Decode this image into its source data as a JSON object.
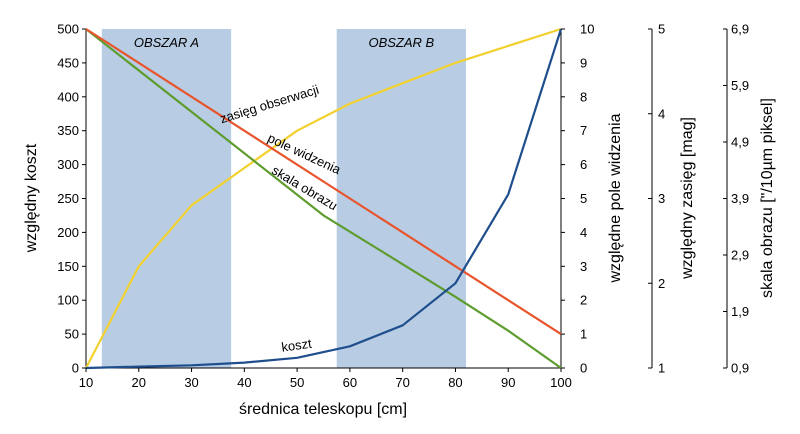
{
  "chart_data": {
    "type": "line",
    "xlabel": "średnica teleskopu [cm]",
    "xlim": [
      10,
      100
    ],
    "x_ticks": [
      "10",
      "20",
      "30",
      "40",
      "50",
      "60",
      "70",
      "80",
      "90",
      "100"
    ],
    "axes": {
      "left": {
        "label": "względny koszt",
        "lim": [
          0,
          500
        ],
        "ticks": [
          "0",
          "50",
          "100",
          "150",
          "200",
          "250",
          "300",
          "350",
          "400",
          "450",
          "500"
        ]
      },
      "right1": {
        "label": "względne pole widzenia",
        "lim": [
          0,
          10
        ],
        "ticks": [
          "0",
          "1",
          "2",
          "3",
          "4",
          "5",
          "6",
          "7",
          "8",
          "9",
          "10"
        ]
      },
      "right2": {
        "label": "względny zasięg [mag]",
        "lim": [
          1,
          5
        ],
        "ticks": [
          "1",
          "2",
          "3",
          "4",
          "5"
        ]
      },
      "right3": {
        "label": "skala obrazu [\"/10µm piksel]",
        "ticks": [
          "0,9",
          "1,9",
          "2,9",
          "3,9",
          "4,9",
          "5,9",
          "6,9"
        ]
      }
    },
    "zones": [
      {
        "label": "OBSZAR A",
        "x_start": 13,
        "x_end": 37.5,
        "color": "#b8cce4"
      },
      {
        "label": "OBSZAR B",
        "x_start": 57.5,
        "x_end": 82,
        "color": "#b8cce4"
      }
    ],
    "series": [
      {
        "name": "koszt",
        "axis": "left",
        "color": "#1f4e8c",
        "x": [
          10,
          20,
          30,
          40,
          50,
          60,
          70,
          80,
          90,
          100
        ],
        "y": [
          0,
          2,
          4,
          8,
          15,
          32,
          63,
          125,
          256,
          500
        ]
      },
      {
        "name": "zasięg obserwacji",
        "axis": "left",
        "color": "#f2d12e",
        "x": [
          10,
          20,
          30,
          40,
          50,
          60,
          70,
          80,
          90,
          100
        ],
        "y": [
          0,
          150,
          240,
          295,
          350,
          390,
          420,
          450,
          475,
          500
        ]
      },
      {
        "name": "pole widzenia",
        "axis": "left",
        "color": "#e8542c",
        "x": [
          10,
          100
        ],
        "y": [
          500,
          50
        ]
      },
      {
        "name": "skala obrazu",
        "axis": "left",
        "color": "#5e9c2e",
        "x": [
          10,
          55,
          80,
          90,
          100
        ],
        "y": [
          500,
          225,
          105,
          55,
          0
        ]
      }
    ]
  }
}
